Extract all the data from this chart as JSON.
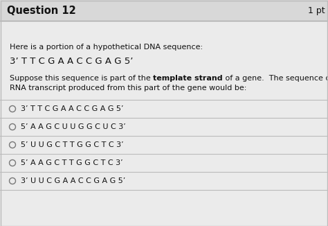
{
  "title": "Question 12",
  "title_pts": "1 pt",
  "bg_color": "#e8e8e8",
  "header_bg": "#d8d8d8",
  "content_bg": "#ebebeb",
  "intro_line1": "Here is a portion of a hypothetical DNA sequence:",
  "dna_sequence": "3’ T T C G A A C C G A G 5’",
  "paragraph_normal": "Suppose this sequence is part of the ",
  "paragraph_bold": "template strand",
  "paragraph_normal2": " of a gene.  The sequence of the",
  "paragraph_line2": "RNA transcript produced from this part of the gene would be:",
  "choices": [
    "3’ T T C G A A C C G A G 5’",
    "5’ A A G C U U G G C U C 3’",
    "5’ U U G C T T G G C T C 3’",
    "5’ A A G C T T G G C T C 3’",
    "3’ U U C G A A C C G A G 5’"
  ],
  "divider_color": "#bbbbbb",
  "text_color": "#111111",
  "header_line_color": "#aaaaaa"
}
